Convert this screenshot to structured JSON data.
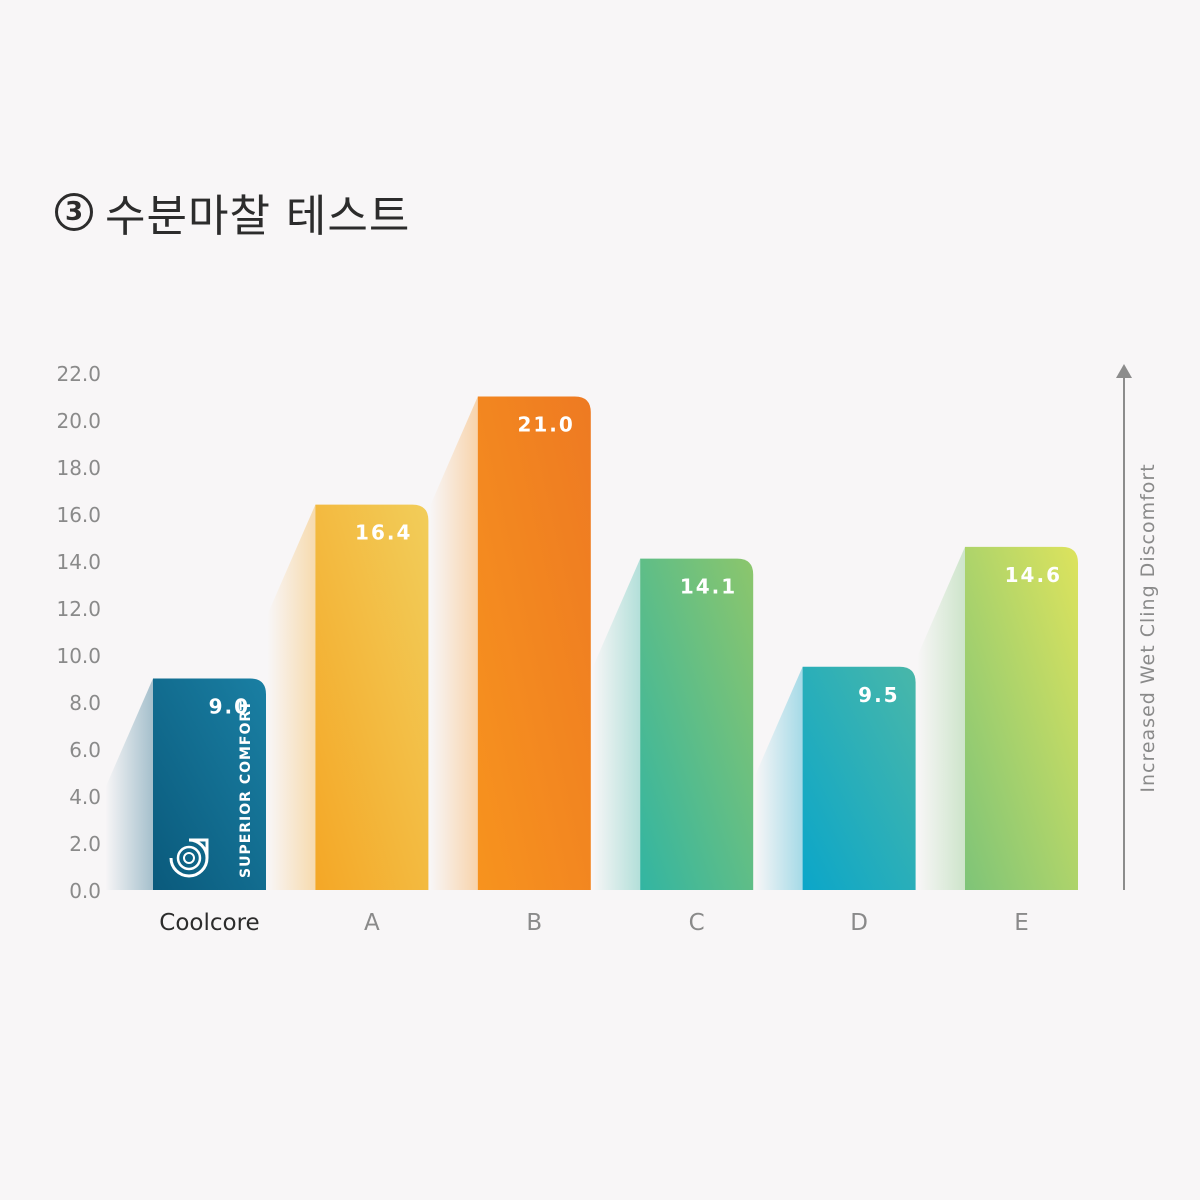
{
  "page": {
    "title_number": "3",
    "title_text": "수분마찰 테스트"
  },
  "chart_data": {
    "type": "bar",
    "categories": [
      "Coolcore",
      "A",
      "B",
      "C",
      "D",
      "E"
    ],
    "values": [
      9.0,
      16.4,
      21.0,
      14.1,
      9.5,
      14.6
    ],
    "value_labels": [
      "9.0",
      "16.4",
      "21.0",
      "14.1",
      "9.5",
      "14.6"
    ],
    "ylabel": "Increased Wet Cling Discomfort",
    "ylim": [
      0,
      22
    ],
    "yticks": [
      "0.0",
      "2.0",
      "4.0",
      "6.0",
      "8.0",
      "10.0",
      "12.0",
      "14.0",
      "16.0",
      "18.0",
      "20.0",
      "22.0"
    ],
    "grid": false,
    "badge_text": "SUPERIOR COMFORT",
    "colors": [
      [
        "#0a5a7c",
        "#1a7fa3"
      ],
      [
        "#f4a726",
        "#f2cd5a"
      ],
      [
        "#f7931e",
        "#ee7a22"
      ],
      [
        "#32b5a2",
        "#8cc66c"
      ],
      [
        "#0ba6c9",
        "#49b7a9"
      ],
      [
        "#7ec478",
        "#dde35d"
      ]
    ]
  }
}
